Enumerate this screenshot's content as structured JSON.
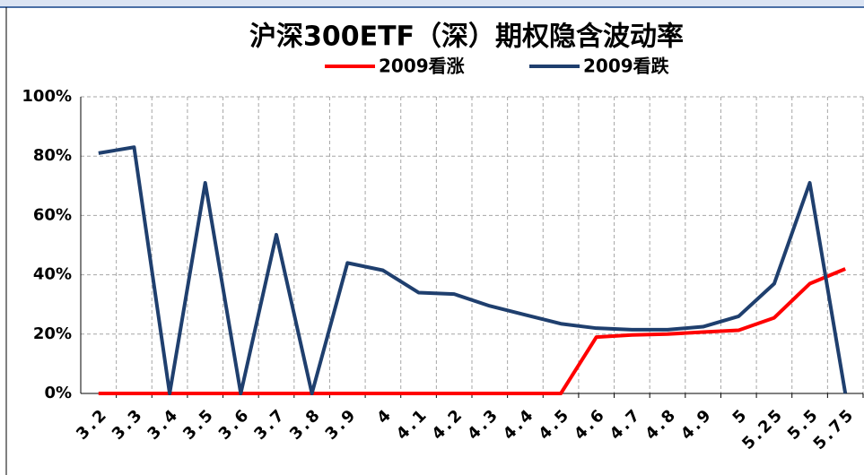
{
  "chart_data": {
    "type": "line",
    "title": "沪深300ETF（深）期权隐含波动率",
    "categories": [
      "3.2",
      "3.3",
      "3.4",
      "3.5",
      "3.6",
      "3.7",
      "3.8",
      "3.9",
      "4",
      "4.1",
      "4.2",
      "4.3",
      "4.4",
      "4.5",
      "4.6",
      "4.7",
      "4.8",
      "4.9",
      "5",
      "5.25",
      "5.5",
      "5.75"
    ],
    "series": [
      {
        "name": "2009看涨",
        "color": "#ff0000",
        "values": [
          0,
          0,
          0,
          0,
          0,
          0,
          0,
          0,
          0,
          0,
          0,
          0,
          0,
          0,
          19,
          19.7,
          20,
          20.7,
          21.3,
          25.5,
          37,
          42
        ]
      },
      {
        "name": "2009看跌",
        "color": "#1f3f6e",
        "values": [
          81,
          83,
          0,
          71,
          0,
          53.5,
          0,
          44,
          41.5,
          34,
          33.5,
          29.5,
          26.5,
          23.5,
          22,
          21.5,
          21.5,
          22.5,
          26,
          37,
          71,
          0
        ]
      }
    ],
    "ylim": [
      0,
      100
    ],
    "yticks": [
      {
        "value": 0,
        "label": "0%"
      },
      {
        "value": 20,
        "label": "20%"
      },
      {
        "value": 40,
        "label": "40%"
      },
      {
        "value": 60,
        "label": "60%"
      },
      {
        "value": 80,
        "label": "80%"
      },
      {
        "value": 100,
        "label": "100%"
      }
    ],
    "grid": true,
    "legend": "top"
  }
}
